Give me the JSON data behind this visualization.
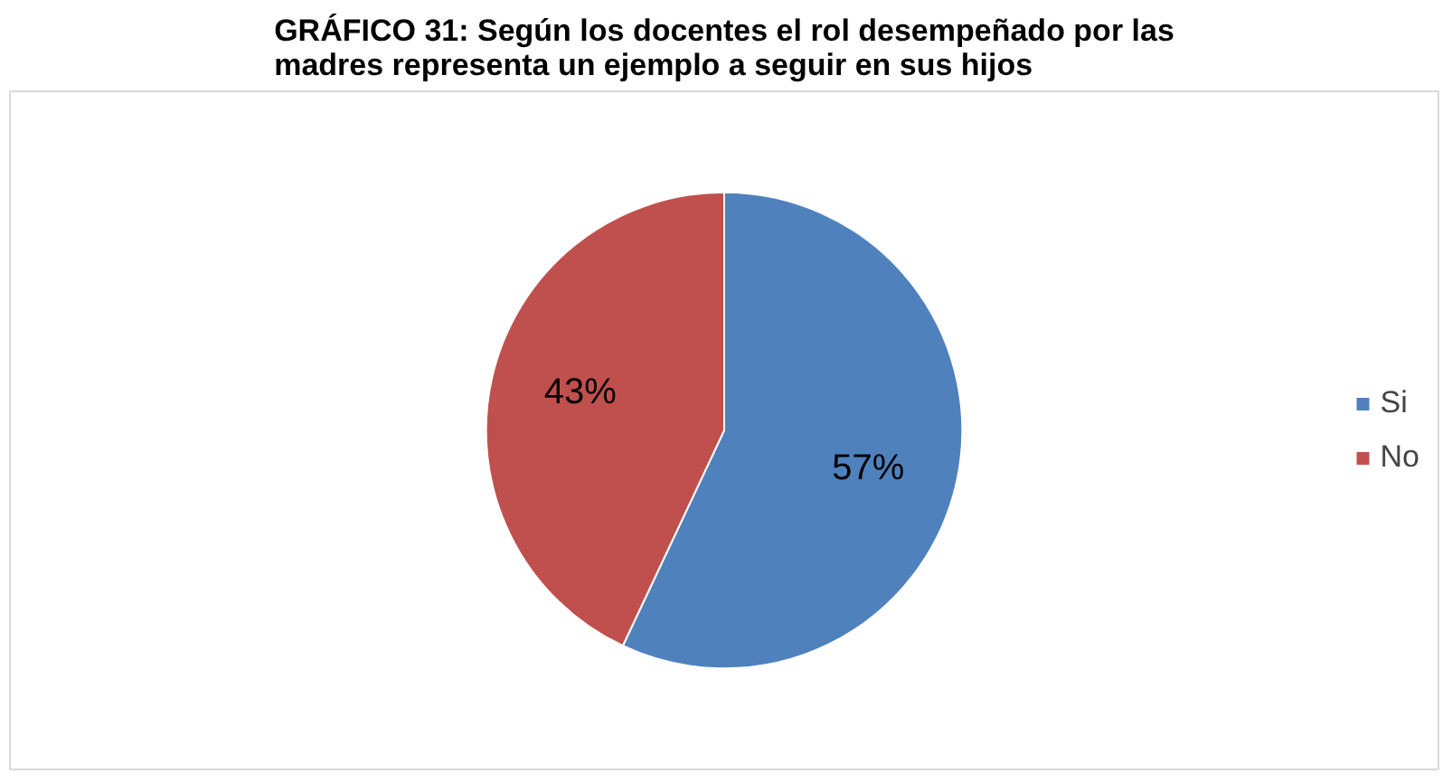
{
  "chart_data": {
    "type": "pie",
    "title": "GRÁFICO 31: Según los docentes el rol desempeñado por las madres representa un ejemplo a seguir en sus hijos",
    "categories": [
      "Si",
      "No"
    ],
    "values": [
      57,
      43
    ],
    "colors": [
      "#4f81bd",
      "#c0504d"
    ],
    "value_labels": [
      "57%",
      "43%"
    ],
    "legend": "right"
  }
}
